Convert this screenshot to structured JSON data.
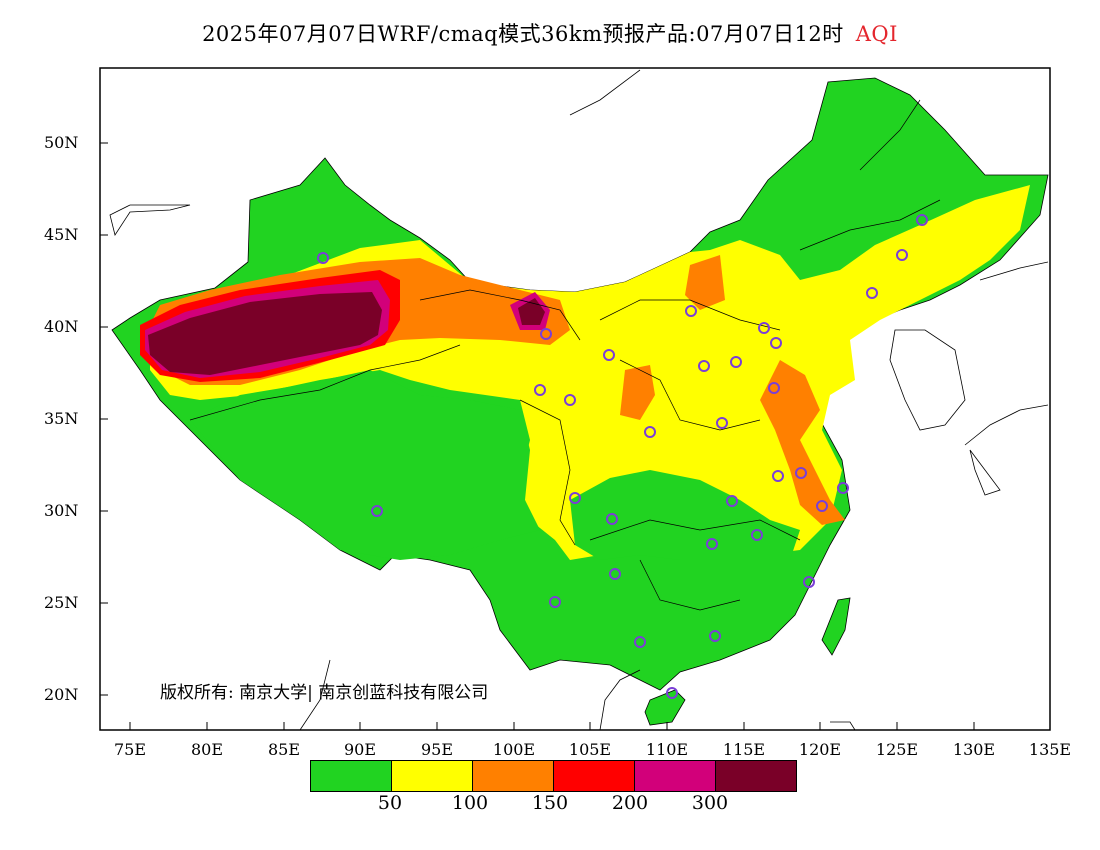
{
  "title": {
    "main": "2025年07月07日WRF/cmaq模式36km预报产品:07月07日12时",
    "variable": "AQI",
    "variable_color": "#e4262d"
  },
  "axes": {
    "y_ticks": [
      "50N",
      "45N",
      "40N",
      "35N",
      "30N",
      "25N",
      "20N"
    ],
    "x_ticks": [
      "75E",
      "80E",
      "85E",
      "90E",
      "95E",
      "100E",
      "105E",
      "110E",
      "115E",
      "120E",
      "125E",
      "130E",
      "135E"
    ]
  },
  "copyright": "版权所有: 南京大学| 南京创蓝科技有限公司",
  "legend": {
    "colors": [
      "#21d321",
      "#ffff00",
      "#ff8000",
      "#ff0000",
      "#d2007a",
      "#7a0028"
    ],
    "breaks": [
      "50",
      "100",
      "150",
      "200",
      "300"
    ]
  },
  "icons": {
    "station": "city-station-icon"
  }
}
